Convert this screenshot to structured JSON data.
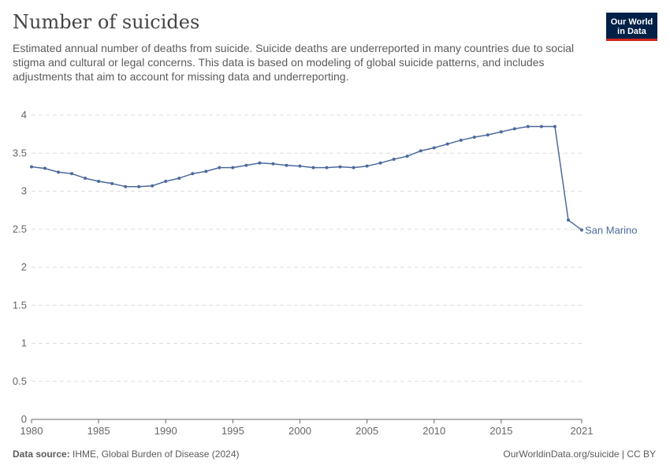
{
  "header": {
    "title": "Number of suicides",
    "subtitle_lines": [
      "Estimated annual number of deaths from suicide. Suicide deaths are underreported in many countries due to social",
      "stigma and cultural or legal concerns. This data is based on modeling of global suicide patterns, and includes adjustments that aim to account for missing data and underreporting."
    ]
  },
  "logo": {
    "line1": "Our World",
    "line2": "in Data"
  },
  "footer": {
    "source_label": "Data source:",
    "source_text": "IHME, Global Burden of Disease (2024)",
    "license": "OurWorldinData.org/suicide | CC BY"
  },
  "colors": {
    "series": "#4c6a9c",
    "grid": "#dddddd",
    "axis": "#666666",
    "logo_bg": "#002147",
    "logo_accent": "#ce261e"
  },
  "chart_data": {
    "type": "line",
    "title": "Number of suicides",
    "xlim": [
      1980,
      2021
    ],
    "ylim": [
      0,
      4
    ],
    "x_ticks": [
      1980,
      1985,
      1990,
      1995,
      2000,
      2005,
      2010,
      2015,
      2021
    ],
    "y_ticks": [
      0,
      0.5,
      1,
      1.5,
      2,
      2.5,
      3,
      3.5,
      4
    ],
    "y_tick_labels": [
      "0",
      "0.5",
      "1",
      "1.5",
      "2",
      "2.5",
      "3",
      "3.5",
      "4"
    ],
    "grid": "horizontal dashed",
    "legend": "end-of-line label",
    "series": [
      {
        "name": "San Marino",
        "x": [
          1980,
          1981,
          1982,
          1983,
          1984,
          1985,
          1986,
          1987,
          1988,
          1989,
          1990,
          1991,
          1992,
          1993,
          1994,
          1995,
          1996,
          1997,
          1998,
          1999,
          2000,
          2001,
          2002,
          2003,
          2004,
          2005,
          2006,
          2007,
          2008,
          2009,
          2010,
          2011,
          2012,
          2013,
          2014,
          2015,
          2016,
          2017,
          2018,
          2019,
          2020,
          2021
        ],
        "values": [
          3.32,
          3.3,
          3.25,
          3.23,
          3.17,
          3.13,
          3.1,
          3.06,
          3.06,
          3.07,
          3.13,
          3.17,
          3.23,
          3.26,
          3.31,
          3.31,
          3.34,
          3.37,
          3.36,
          3.34,
          3.33,
          3.31,
          3.31,
          3.32,
          3.31,
          3.33,
          3.37,
          3.42,
          3.46,
          3.53,
          3.57,
          3.62,
          3.67,
          3.71,
          3.74,
          3.78,
          3.82,
          3.85,
          3.85,
          3.85,
          2.62,
          2.49
        ]
      }
    ]
  }
}
